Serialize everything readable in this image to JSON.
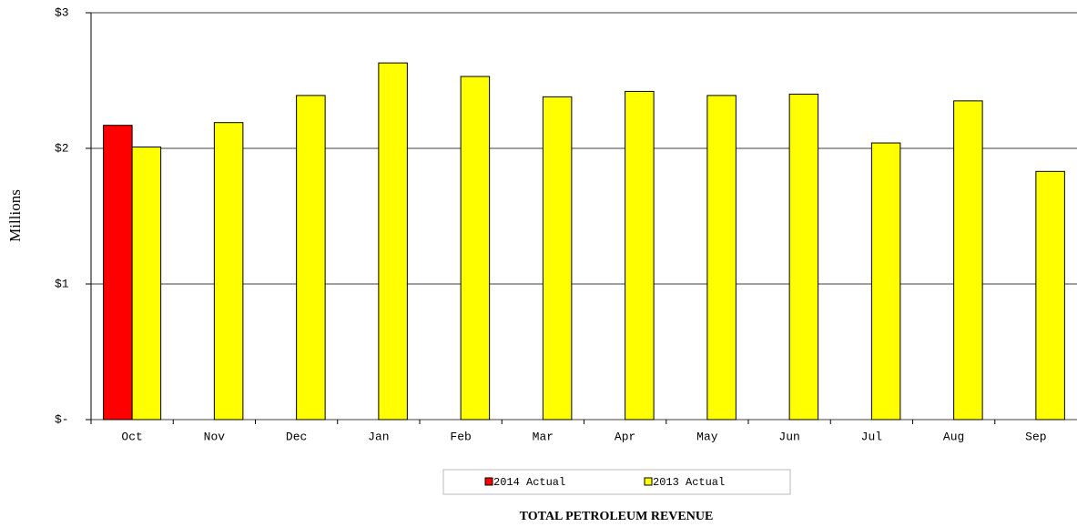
{
  "chart_data": {
    "type": "bar",
    "title": "TOTAL PETROLEUM REVENUE",
    "y_label": "Millions",
    "categories": [
      "Oct",
      "Nov",
      "Dec",
      "Jan",
      "Feb",
      "Mar",
      "Apr",
      "May",
      "Jun",
      "Jul",
      "Aug",
      "Sep"
    ],
    "series": [
      {
        "name": "2014 Actual",
        "color": "#ff0000",
        "values": [
          2.17,
          null,
          null,
          null,
          null,
          null,
          null,
          null,
          null,
          null,
          null,
          null
        ]
      },
      {
        "name": "2013 Actual",
        "color": "#ffff00",
        "values": [
          2.01,
          2.19,
          2.39,
          2.63,
          2.53,
          2.38,
          2.42,
          2.39,
          2.4,
          2.04,
          2.35,
          1.83
        ]
      }
    ],
    "ylim": [
      0,
      3
    ],
    "yticks": [
      {
        "value": 0,
        "label": "$-"
      },
      {
        "value": 1,
        "label": "$1"
      },
      {
        "value": 2,
        "label": "$2"
      },
      {
        "value": 3,
        "label": "$3"
      }
    ],
    "grid": true,
    "legend": "bottom"
  }
}
